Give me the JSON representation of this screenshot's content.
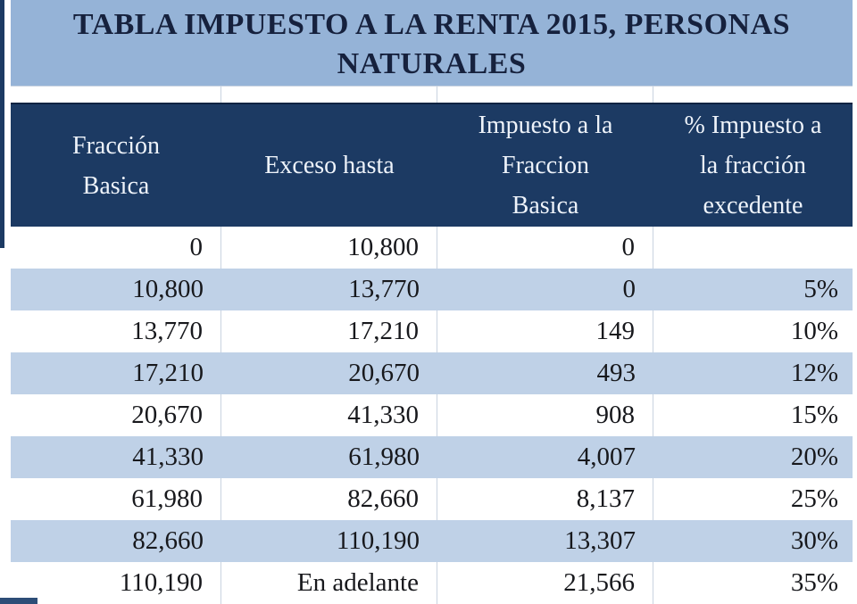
{
  "title": {
    "line1": "TABLA IMPUESTO A LA RENTA 2015, PERSONAS",
    "line2": "NATURALES",
    "full": "TABLA IMPUESTO A LA RENTA 2015, PERSONAS NATURALES"
  },
  "table": {
    "columns": [
      {
        "label": "Fracción Basica",
        "lines": [
          "Fracción",
          "Basica"
        ]
      },
      {
        "label": "Exceso hasta",
        "lines": [
          "Exceso hasta"
        ]
      },
      {
        "label": "Impuesto a la Fraccion Basica",
        "lines": [
          "Impuesto a la",
          "Fraccion",
          "Basica"
        ]
      },
      {
        "label": "% Impuesto a la fracción excedente",
        "lines": [
          "% Impuesto a",
          "la fracción",
          "excedente"
        ]
      }
    ],
    "rows": [
      [
        "0",
        "10,800",
        "0",
        ""
      ],
      [
        "10,800",
        "13,770",
        "0",
        "5%"
      ],
      [
        "13,770",
        "17,210",
        "149",
        "10%"
      ],
      [
        "17,210",
        "20,670",
        "493",
        "12%"
      ],
      [
        "20,670",
        "41,330",
        "908",
        "15%"
      ],
      [
        "41,330",
        "61,980",
        "4,007",
        "20%"
      ],
      [
        "61,980",
        "82,660",
        "8,137",
        "25%"
      ],
      [
        "82,660",
        "110,190",
        "13,307",
        "30%"
      ],
      [
        "110,190",
        "En adelante",
        "21,566",
        "35%"
      ]
    ]
  },
  "chart_data": {
    "type": "table",
    "title": "TABLA IMPUESTO A LA RENTA 2015, PERSONAS NATURALES",
    "columns": [
      "Fracción Basica",
      "Exceso hasta",
      "Impuesto a la Fraccion Basica",
      "% Impuesto a la fracción excedente"
    ],
    "rows": [
      {
        "fraccion_basica": 0,
        "exceso_hasta": 10800,
        "impuesto_fraccion_basica": 0,
        "pct_fraccion_excedente": null
      },
      {
        "fraccion_basica": 10800,
        "exceso_hasta": 13770,
        "impuesto_fraccion_basica": 0,
        "pct_fraccion_excedente": "5%"
      },
      {
        "fraccion_basica": 13770,
        "exceso_hasta": 17210,
        "impuesto_fraccion_basica": 149,
        "pct_fraccion_excedente": "10%"
      },
      {
        "fraccion_basica": 17210,
        "exceso_hasta": 20670,
        "impuesto_fraccion_basica": 493,
        "pct_fraccion_excedente": "12%"
      },
      {
        "fraccion_basica": 20670,
        "exceso_hasta": 41330,
        "impuesto_fraccion_basica": 908,
        "pct_fraccion_excedente": "15%"
      },
      {
        "fraccion_basica": 41330,
        "exceso_hasta": 61980,
        "impuesto_fraccion_basica": 4007,
        "pct_fraccion_excedente": "20%"
      },
      {
        "fraccion_basica": 61980,
        "exceso_hasta": 82660,
        "impuesto_fraccion_basica": 8137,
        "pct_fraccion_excedente": "25%"
      },
      {
        "fraccion_basica": 82660,
        "exceso_hasta": 110190,
        "impuesto_fraccion_basica": 13307,
        "pct_fraccion_excedente": "30%"
      },
      {
        "fraccion_basica": 110190,
        "exceso_hasta": "En adelante",
        "impuesto_fraccion_basica": 21566,
        "pct_fraccion_excedente": "35%"
      }
    ]
  },
  "colors": {
    "title_bg": "#95b3d7",
    "title_text": "#16213d",
    "header_bg": "#1c3a63",
    "header_border": "#0e2342",
    "header_text": "#eef3fa",
    "alt_row_bg": "#bfd1e7",
    "row_bg": "#ffffff",
    "body_text": "#17181c",
    "grid_line": "#c9d3e0"
  }
}
